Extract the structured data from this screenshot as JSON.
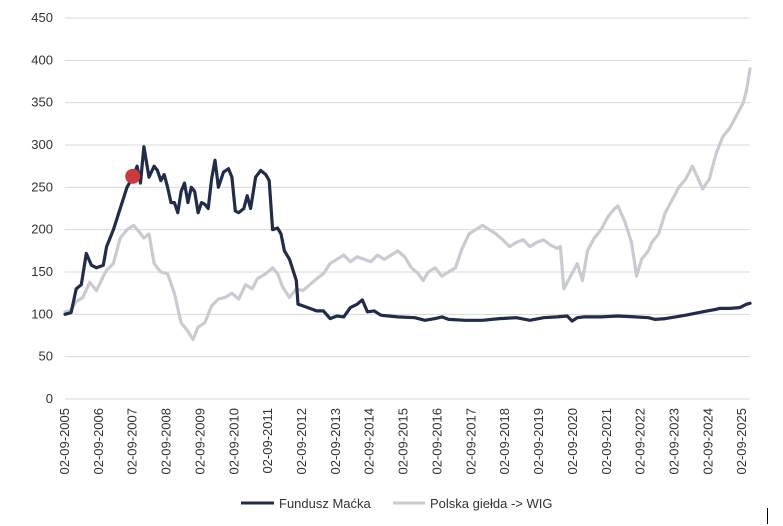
{
  "chart_data": {
    "type": "line",
    "title": "",
    "xlabel": "",
    "ylabel": "",
    "ylim": [
      0,
      450
    ],
    "yticks": [
      0,
      50,
      100,
      150,
      200,
      250,
      300,
      350,
      400,
      450
    ],
    "xlim": [
      2005.67,
      2025.9
    ],
    "categories": [
      "02-09-2005",
      "02-09-2006",
      "02-09-2007",
      "02-09-2008",
      "02-09-2009",
      "02-09-2010",
      "02-09-2011",
      "02-09-2012",
      "02-09-2013",
      "02-09-2014",
      "02-09-2015",
      "02-09-2016",
      "02-09-2017",
      "02-09-2018",
      "02-09-2019",
      "02-09-2020",
      "02-09-2021",
      "02-09-2022",
      "02-09-2023",
      "02-09-2024",
      "02-09-2025"
    ],
    "legend_position": "bottom",
    "grid": true,
    "series": [
      {
        "name": "Fundusz Maćka",
        "color": "#1f2d4a",
        "points": [
          [
            2005.67,
            100
          ],
          [
            2005.85,
            102
          ],
          [
            2006.0,
            130
          ],
          [
            2006.15,
            135
          ],
          [
            2006.3,
            172
          ],
          [
            2006.45,
            158
          ],
          [
            2006.6,
            155
          ],
          [
            2006.8,
            158
          ],
          [
            2006.9,
            180
          ],
          [
            2007.1,
            200
          ],
          [
            2007.3,
            225
          ],
          [
            2007.5,
            250
          ],
          [
            2007.67,
            262
          ],
          [
            2007.8,
            275
          ],
          [
            2007.9,
            255
          ],
          [
            2008.0,
            298
          ],
          [
            2008.15,
            262
          ],
          [
            2008.3,
            275
          ],
          [
            2008.4,
            270
          ],
          [
            2008.5,
            258
          ],
          [
            2008.6,
            265
          ],
          [
            2008.7,
            250
          ],
          [
            2008.8,
            232
          ],
          [
            2008.9,
            232
          ],
          [
            2009.0,
            220
          ],
          [
            2009.1,
            245
          ],
          [
            2009.2,
            255
          ],
          [
            2009.3,
            232
          ],
          [
            2009.4,
            250
          ],
          [
            2009.5,
            245
          ],
          [
            2009.6,
            220
          ],
          [
            2009.7,
            232
          ],
          [
            2009.8,
            230
          ],
          [
            2009.9,
            225
          ],
          [
            2010.0,
            260
          ],
          [
            2010.1,
            282
          ],
          [
            2010.2,
            250
          ],
          [
            2010.35,
            268
          ],
          [
            2010.5,
            272
          ],
          [
            2010.6,
            262
          ],
          [
            2010.7,
            222
          ],
          [
            2010.8,
            220
          ],
          [
            2010.95,
            225
          ],
          [
            2011.05,
            240
          ],
          [
            2011.15,
            225
          ],
          [
            2011.3,
            262
          ],
          [
            2011.45,
            270
          ],
          [
            2011.6,
            265
          ],
          [
            2011.7,
            258
          ],
          [
            2011.8,
            200
          ],
          [
            2011.95,
            202
          ],
          [
            2012.05,
            195
          ],
          [
            2012.15,
            175
          ],
          [
            2012.3,
            165
          ],
          [
            2012.5,
            140
          ],
          [
            2012.55,
            112
          ],
          [
            2012.7,
            110
          ],
          [
            2012.9,
            107
          ],
          [
            2013.1,
            104
          ],
          [
            2013.3,
            104
          ],
          [
            2013.5,
            95
          ],
          [
            2013.7,
            98
          ],
          [
            2013.9,
            97
          ],
          [
            2014.1,
            108
          ],
          [
            2014.3,
            112
          ],
          [
            2014.45,
            117
          ],
          [
            2014.6,
            103
          ],
          [
            2014.8,
            104
          ],
          [
            2015.0,
            99
          ],
          [
            2015.5,
            97
          ],
          [
            2016.0,
            96
          ],
          [
            2016.3,
            93
          ],
          [
            2016.6,
            95
          ],
          [
            2016.8,
            97
          ],
          [
            2017.0,
            94
          ],
          [
            2017.5,
            93
          ],
          [
            2018.0,
            93
          ],
          [
            2018.5,
            95
          ],
          [
            2019.0,
            96
          ],
          [
            2019.4,
            93
          ],
          [
            2019.8,
            96
          ],
          [
            2020.2,
            97
          ],
          [
            2020.5,
            98
          ],
          [
            2020.65,
            92
          ],
          [
            2020.8,
            96
          ],
          [
            2021.0,
            97
          ],
          [
            2021.5,
            97
          ],
          [
            2022.0,
            98
          ],
          [
            2022.5,
            97
          ],
          [
            2022.9,
            96
          ],
          [
            2023.1,
            94
          ],
          [
            2023.4,
            95
          ],
          [
            2023.7,
            97
          ],
          [
            2024.0,
            99
          ],
          [
            2024.5,
            103
          ],
          [
            2024.9,
            106
          ],
          [
            2025.0,
            107
          ],
          [
            2025.3,
            107
          ],
          [
            2025.6,
            108
          ],
          [
            2025.8,
            112
          ],
          [
            2025.9,
            113
          ]
        ]
      },
      {
        "name": "Polska giełda -> WIG",
        "color": "#c9cbd3",
        "points": [
          [
            2005.67,
            103
          ],
          [
            2005.85,
            105
          ],
          [
            2006.0,
            115
          ],
          [
            2006.2,
            120
          ],
          [
            2006.4,
            138
          ],
          [
            2006.6,
            128
          ],
          [
            2006.8,
            145
          ],
          [
            2006.9,
            152
          ],
          [
            2007.1,
            160
          ],
          [
            2007.3,
            190
          ],
          [
            2007.5,
            200
          ],
          [
            2007.7,
            205
          ],
          [
            2007.85,
            198
          ],
          [
            2008.0,
            190
          ],
          [
            2008.15,
            195
          ],
          [
            2008.3,
            160
          ],
          [
            2008.5,
            150
          ],
          [
            2008.7,
            148
          ],
          [
            2008.9,
            125
          ],
          [
            2009.1,
            90
          ],
          [
            2009.3,
            80
          ],
          [
            2009.45,
            70
          ],
          [
            2009.6,
            85
          ],
          [
            2009.8,
            90
          ],
          [
            2010.0,
            110
          ],
          [
            2010.2,
            118
          ],
          [
            2010.4,
            120
          ],
          [
            2010.6,
            125
          ],
          [
            2010.8,
            118
          ],
          [
            2011.0,
            135
          ],
          [
            2011.2,
            130
          ],
          [
            2011.35,
            142
          ],
          [
            2011.6,
            148
          ],
          [
            2011.8,
            155
          ],
          [
            2011.95,
            148
          ],
          [
            2012.1,
            132
          ],
          [
            2012.3,
            120
          ],
          [
            2012.5,
            130
          ],
          [
            2012.7,
            128
          ],
          [
            2012.9,
            135
          ],
          [
            2013.1,
            142
          ],
          [
            2013.3,
            148
          ],
          [
            2013.5,
            160
          ],
          [
            2013.7,
            165
          ],
          [
            2013.9,
            170
          ],
          [
            2014.1,
            162
          ],
          [
            2014.3,
            168
          ],
          [
            2014.5,
            165
          ],
          [
            2014.7,
            162
          ],
          [
            2014.9,
            170
          ],
          [
            2015.1,
            165
          ],
          [
            2015.3,
            170
          ],
          [
            2015.5,
            175
          ],
          [
            2015.7,
            168
          ],
          [
            2015.9,
            155
          ],
          [
            2016.1,
            148
          ],
          [
            2016.25,
            140
          ],
          [
            2016.4,
            150
          ],
          [
            2016.6,
            155
          ],
          [
            2016.8,
            145
          ],
          [
            2017.0,
            150
          ],
          [
            2017.2,
            155
          ],
          [
            2017.4,
            178
          ],
          [
            2017.6,
            195
          ],
          [
            2017.8,
            200
          ],
          [
            2018.0,
            205
          ],
          [
            2018.2,
            200
          ],
          [
            2018.4,
            195
          ],
          [
            2018.6,
            188
          ],
          [
            2018.8,
            180
          ],
          [
            2019.0,
            185
          ],
          [
            2019.2,
            188
          ],
          [
            2019.4,
            180
          ],
          [
            2019.6,
            185
          ],
          [
            2019.8,
            188
          ],
          [
            2020.0,
            182
          ],
          [
            2020.2,
            178
          ],
          [
            2020.3,
            180
          ],
          [
            2020.4,
            130
          ],
          [
            2020.6,
            145
          ],
          [
            2020.8,
            160
          ],
          [
            2020.95,
            140
          ],
          [
            2021.1,
            175
          ],
          [
            2021.3,
            190
          ],
          [
            2021.5,
            200
          ],
          [
            2021.7,
            215
          ],
          [
            2021.9,
            225
          ],
          [
            2022.0,
            228
          ],
          [
            2022.2,
            210
          ],
          [
            2022.4,
            185
          ],
          [
            2022.55,
            145
          ],
          [
            2022.7,
            165
          ],
          [
            2022.9,
            175
          ],
          [
            2023.0,
            185
          ],
          [
            2023.2,
            195
          ],
          [
            2023.4,
            220
          ],
          [
            2023.6,
            235
          ],
          [
            2023.8,
            250
          ],
          [
            2024.0,
            260
          ],
          [
            2024.2,
            275
          ],
          [
            2024.35,
            262
          ],
          [
            2024.5,
            248
          ],
          [
            2024.7,
            260
          ],
          [
            2024.9,
            290
          ],
          [
            2025.1,
            310
          ],
          [
            2025.3,
            320
          ],
          [
            2025.5,
            335
          ],
          [
            2025.7,
            350
          ],
          [
            2025.8,
            365
          ],
          [
            2025.9,
            390
          ]
        ]
      }
    ],
    "marker": {
      "x": 2007.67,
      "y": 263,
      "color": "#cc3b3b"
    }
  }
}
